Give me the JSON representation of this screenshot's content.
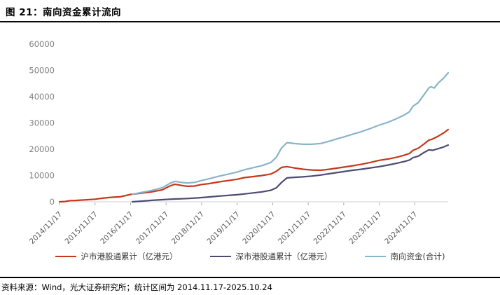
{
  "page": {
    "title": "图 21：南向资金累计流向",
    "source": "资料来源：Wind，光大证券研究所；统计区间为 2014.11.17-2025.10.24"
  },
  "chart_data": {
    "type": "line",
    "title": "南向资金累计流向",
    "xlabel": "",
    "ylabel": "",
    "ylim": [
      0,
      60000
    ],
    "yticks": [
      0,
      10000,
      20000,
      30000,
      40000,
      50000,
      60000
    ],
    "xlim": [
      0,
      10.94
    ],
    "x_unit": "years since 2014/11/17 (data span 2014.11.17 - 2025.10.24)",
    "xtick_positions": [
      0,
      1,
      2,
      3,
      4,
      5,
      6,
      7,
      8,
      9,
      10
    ],
    "xtick_labels": [
      "2014/11/17",
      "2015/11/17",
      "2016/11/17",
      "2017/11/17",
      "2018/11/17",
      "2019/11/17",
      "2020/11/17",
      "2021/11/17",
      "2022/11/17",
      "2023/11/17",
      "2024/11/17"
    ],
    "grid": false,
    "legend_position": "bottom",
    "series": [
      {
        "name": "沪市港股通累计（亿港元）",
        "color": "#C5381C",
        "points": [
          [
            0,
            0
          ],
          [
            0.15,
            120
          ],
          [
            0.3,
            450
          ],
          [
            0.45,
            520
          ],
          [
            0.6,
            650
          ],
          [
            0.8,
            800
          ],
          [
            1.0,
            1000
          ],
          [
            1.2,
            1350
          ],
          [
            1.45,
            1700
          ],
          [
            1.7,
            1900
          ],
          [
            2.0,
            2800
          ],
          [
            2.3,
            3300
          ],
          [
            2.6,
            3800
          ],
          [
            2.9,
            4600
          ],
          [
            3.1,
            6000
          ],
          [
            3.25,
            6700
          ],
          [
            3.45,
            6200
          ],
          [
            3.6,
            5900
          ],
          [
            3.8,
            6000
          ],
          [
            4.0,
            6600
          ],
          [
            4.2,
            6900
          ],
          [
            4.5,
            7600
          ],
          [
            4.8,
            8200
          ],
          [
            5.0,
            8600
          ],
          [
            5.2,
            9200
          ],
          [
            5.45,
            9600
          ],
          [
            5.7,
            10000
          ],
          [
            5.95,
            10600
          ],
          [
            6.1,
            11600
          ],
          [
            6.25,
            13100
          ],
          [
            6.4,
            13400
          ],
          [
            6.6,
            12900
          ],
          [
            6.85,
            12400
          ],
          [
            7.1,
            12100
          ],
          [
            7.35,
            12000
          ],
          [
            7.6,
            12400
          ],
          [
            7.85,
            12900
          ],
          [
            8.0,
            13200
          ],
          [
            8.25,
            13700
          ],
          [
            8.5,
            14300
          ],
          [
            8.75,
            15000
          ],
          [
            9.0,
            15800
          ],
          [
            9.25,
            16300
          ],
          [
            9.5,
            17000
          ],
          [
            9.7,
            17700
          ],
          [
            9.85,
            18400
          ],
          [
            9.95,
            19600
          ],
          [
            10.1,
            20400
          ],
          [
            10.25,
            21900
          ],
          [
            10.4,
            23500
          ],
          [
            10.5,
            23900
          ],
          [
            10.65,
            24900
          ],
          [
            10.8,
            26100
          ],
          [
            10.94,
            27500
          ]
        ]
      },
      {
        "name": "深市港股通累计（亿港元）",
        "color": "#4D4B72",
        "points": [
          [
            2.05,
            0
          ],
          [
            2.3,
            250
          ],
          [
            2.6,
            550
          ],
          [
            2.9,
            800
          ],
          [
            3.1,
            1000
          ],
          [
            3.3,
            1100
          ],
          [
            3.6,
            1250
          ],
          [
            3.9,
            1500
          ],
          [
            4.2,
            1850
          ],
          [
            4.5,
            2200
          ],
          [
            4.8,
            2500
          ],
          [
            5.0,
            2700
          ],
          [
            5.2,
            3000
          ],
          [
            5.45,
            3400
          ],
          [
            5.7,
            3800
          ],
          [
            5.95,
            4400
          ],
          [
            6.1,
            5300
          ],
          [
            6.25,
            7400
          ],
          [
            6.4,
            9100
          ],
          [
            6.6,
            9300
          ],
          [
            6.85,
            9500
          ],
          [
            7.1,
            9800
          ],
          [
            7.35,
            10200
          ],
          [
            7.6,
            10700
          ],
          [
            7.85,
            11200
          ],
          [
            8.0,
            11500
          ],
          [
            8.25,
            12000
          ],
          [
            8.5,
            12400
          ],
          [
            8.75,
            12900
          ],
          [
            9.0,
            13400
          ],
          [
            9.25,
            14000
          ],
          [
            9.5,
            14700
          ],
          [
            9.7,
            15300
          ],
          [
            9.85,
            15900
          ],
          [
            9.95,
            16800
          ],
          [
            10.1,
            17400
          ],
          [
            10.25,
            18700
          ],
          [
            10.4,
            19800
          ],
          [
            10.5,
            19600
          ],
          [
            10.65,
            20200
          ],
          [
            10.8,
            20800
          ],
          [
            10.94,
            21600
          ]
        ]
      },
      {
        "name": "南向资金(合计)",
        "color": "#8AB4C9",
        "points": [
          [
            2.05,
            2870
          ],
          [
            2.3,
            3550
          ],
          [
            2.6,
            4350
          ],
          [
            2.9,
            5400
          ],
          [
            3.1,
            7000
          ],
          [
            3.25,
            7800
          ],
          [
            3.45,
            7350
          ],
          [
            3.6,
            7150
          ],
          [
            3.8,
            7400
          ],
          [
            4.0,
            8100
          ],
          [
            4.2,
            8750
          ],
          [
            4.5,
            9800
          ],
          [
            4.8,
            10700
          ],
          [
            5.0,
            11300
          ],
          [
            5.2,
            12200
          ],
          [
            5.45,
            13000
          ],
          [
            5.7,
            13800
          ],
          [
            5.95,
            15000
          ],
          [
            6.1,
            16900
          ],
          [
            6.25,
            20500
          ],
          [
            6.4,
            22500
          ],
          [
            6.5,
            22400
          ],
          [
            6.6,
            22200
          ],
          [
            6.85,
            21900
          ],
          [
            7.1,
            21900
          ],
          [
            7.35,
            22200
          ],
          [
            7.6,
            23100
          ],
          [
            7.85,
            24100
          ],
          [
            8.0,
            24700
          ],
          [
            8.25,
            25700
          ],
          [
            8.5,
            26700
          ],
          [
            8.75,
            27900
          ],
          [
            9.0,
            29200
          ],
          [
            9.25,
            30300
          ],
          [
            9.5,
            31700
          ],
          [
            9.7,
            33000
          ],
          [
            9.85,
            34300
          ],
          [
            9.95,
            36400
          ],
          [
            10.1,
            37800
          ],
          [
            10.25,
            40600
          ],
          [
            10.4,
            43400
          ],
          [
            10.45,
            43800
          ],
          [
            10.55,
            43300
          ],
          [
            10.65,
            45100
          ],
          [
            10.8,
            46900
          ],
          [
            10.94,
            49100
          ]
        ]
      }
    ]
  },
  "colors": {
    "axis_line": "#D9D9D9",
    "tick": "#ABABAB",
    "y_label": "#7F7F7F",
    "x_label": "#595959",
    "rule": "#000000"
  }
}
